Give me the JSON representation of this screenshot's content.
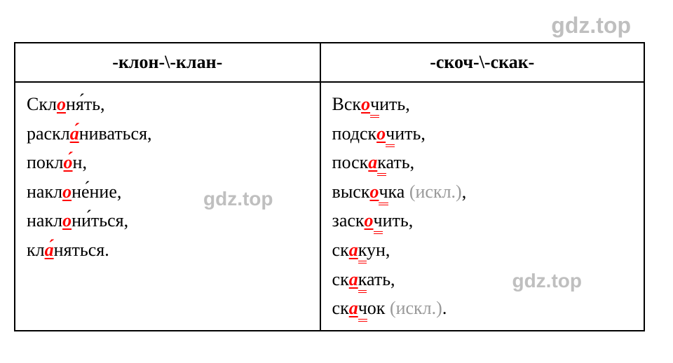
{
  "watermarks": {
    "top": "gdz.top",
    "mid": "gdz.top",
    "bottom": "gdz.top"
  },
  "table": {
    "headers": {
      "col1": "-клон-\\-клан-",
      "col2": "-скоч-\\-скак-"
    },
    "col1": {
      "w1_pre": "Скл",
      "w1_hl": "о",
      "w1_post": "ня́ть,",
      "w2_pre": "раскл",
      "w2_hl": "а́",
      "w2_post": "ниваться,",
      "w3_pre": "покл",
      "w3_hl": "о́",
      "w3_post": "н,",
      "w4_pre": "накл",
      "w4_hl": "о",
      "w4_post": "не́ние,",
      "w5_pre": "накл",
      "w5_hl": "о",
      "w5_post": "ни́ться,",
      "w6_pre": "кл",
      "w6_hl": "а́",
      "w6_post": "няться."
    },
    "col2": {
      "w1_pre": "Вск",
      "w1_hl": "о",
      "w1_dbl": "ч",
      "w1_post": "ить,",
      "w2_pre": "подск",
      "w2_hl": "о",
      "w2_dbl": "ч",
      "w2_post": "ить,",
      "w3_pre": "поск",
      "w3_hl": "а",
      "w3_dbl": "к",
      "w3_post": "ать,",
      "w4_pre": "выск",
      "w4_hl": "о",
      "w4_dbl": "ч",
      "w4_post": "ка ",
      "w4_note": "(искл.)",
      "w4_end": ",",
      "w5_pre": "заск",
      "w5_hl": "о",
      "w5_dbl": "ч",
      "w5_post": "ить,",
      "w6_pre": "ск",
      "w6_hl": "а",
      "w6_dbl": "к",
      "w6_post": "ун,",
      "w7_pre": "ск",
      "w7_hl": "а",
      "w7_dbl": "к",
      "w7_post": "ать,",
      "w8_pre": "ск",
      "w8_hl": "а",
      "w8_dbl": "ч",
      "w8_post": "ок ",
      "w8_note": "(искл.)",
      "w8_end": "."
    }
  },
  "colors": {
    "highlight": "#ff0000",
    "note": "#999999",
    "watermark": "#bfbfbf",
    "border": "#000000",
    "background": "#ffffff",
    "text": "#000000"
  },
  "fonts": {
    "body_size_pt": 20,
    "header_size_pt": 20,
    "watermark_size_pt": 24,
    "body_family": "Times New Roman",
    "watermark_family": "Arial"
  }
}
